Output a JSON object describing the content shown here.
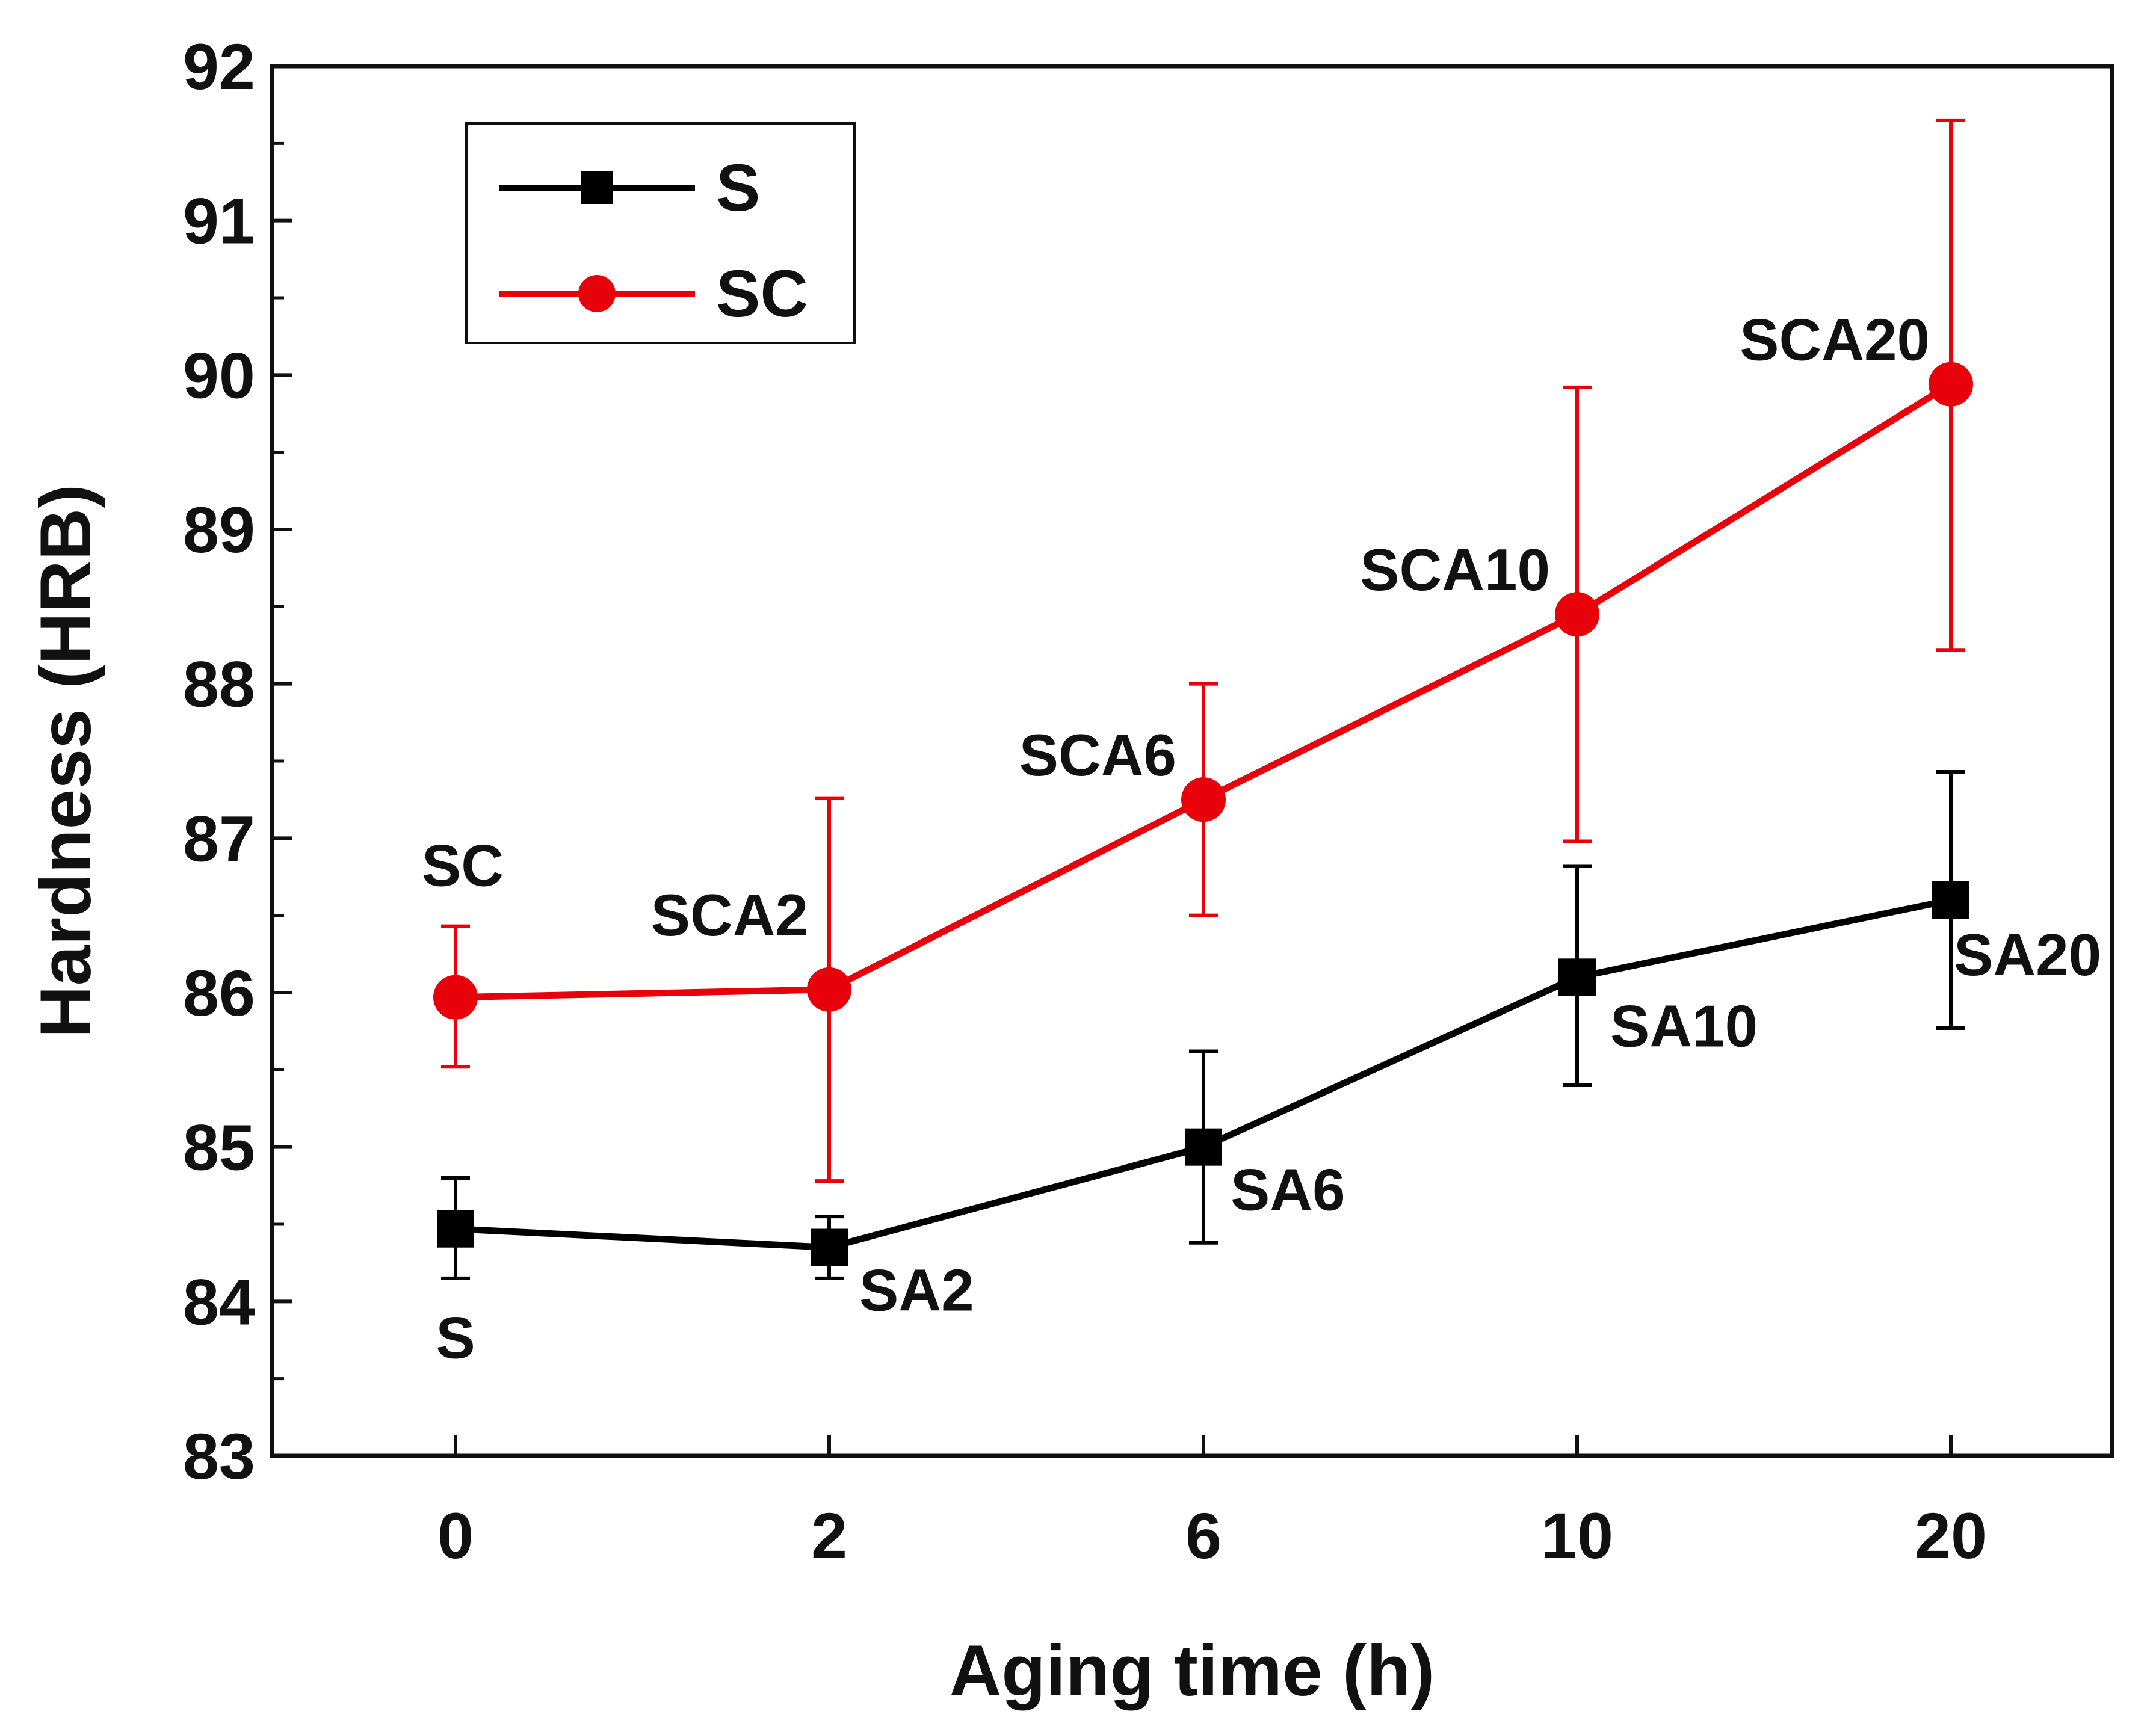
{
  "chart_data": {
    "type": "line",
    "title": "",
    "xlabel": "Aging time (h)",
    "ylabel": "Hardness (HRB)",
    "categories": [
      "0",
      "2",
      "6",
      "10",
      "20"
    ],
    "ylim": [
      83,
      92
    ],
    "yticks": [
      "83",
      "84",
      "85",
      "86",
      "87",
      "88",
      "89",
      "90",
      "91",
      "92"
    ],
    "grid": false,
    "legend_position": "top-left",
    "series": [
      {
        "name": "S",
        "marker": "square",
        "color": "#000000",
        "values": [
          84.47,
          84.35,
          85.0,
          86.1,
          86.6
        ],
        "err_low": [
          84.15,
          84.15,
          84.38,
          85.4,
          85.77
        ],
        "err_high": [
          84.8,
          84.55,
          85.62,
          86.82,
          87.43
        ],
        "point_labels": [
          "S",
          "SA2",
          "SA6",
          "SA10",
          "SA20"
        ]
      },
      {
        "name": "SC",
        "marker": "circle",
        "color": "#e8000b",
        "values": [
          85.97,
          86.02,
          87.25,
          88.45,
          89.94
        ],
        "err_low": [
          85.52,
          84.78,
          86.5,
          86.98,
          88.22
        ],
        "err_high": [
          86.43,
          87.26,
          88.0,
          89.92,
          91.65
        ],
        "point_labels": [
          "SC",
          "SCA2",
          "SCA6",
          "SCA10",
          "SCA20"
        ]
      }
    ]
  }
}
